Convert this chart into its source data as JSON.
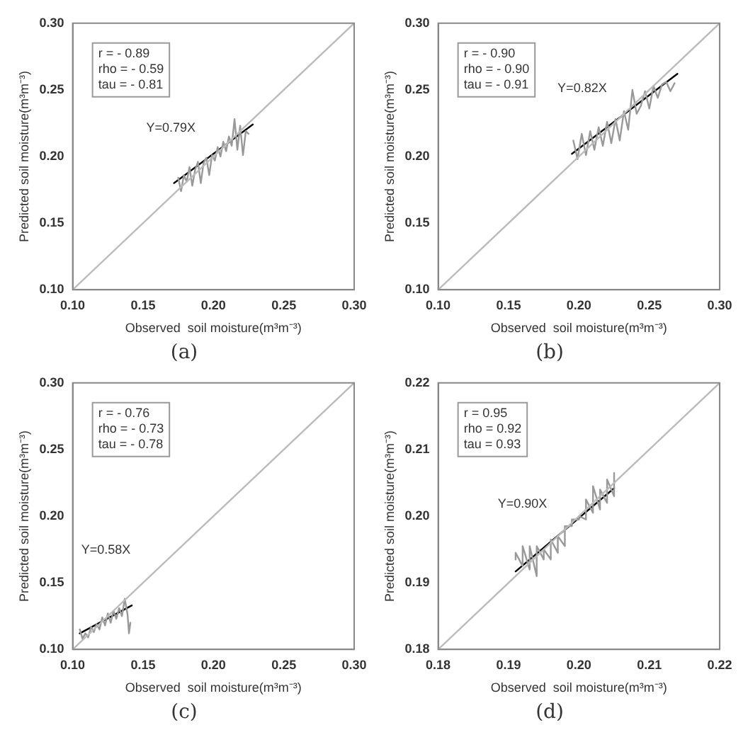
{
  "chart_data": [
    {
      "type": "line",
      "title": "(a)",
      "xlabel": "Observed  soil moisture(m³m⁻³)",
      "ylabel": "Predicted soil moisture(m³m⁻³)",
      "xlim": [
        0.1,
        0.3
      ],
      "ylim": [
        0.1,
        0.3
      ],
      "xticks": [
        {
          "value": 0.1,
          "label": "0.10"
        },
        {
          "value": 0.15,
          "label": "0.15"
        },
        {
          "value": 0.2,
          "label": "0.20"
        },
        {
          "value": 0.25,
          "label": "0.25"
        },
        {
          "value": 0.3,
          "label": "0.30"
        }
      ],
      "yticks": [
        {
          "value": 0.1,
          "label": "0.10"
        },
        {
          "value": 0.15,
          "label": "0.15"
        },
        {
          "value": 0.2,
          "label": "0.20"
        },
        {
          "value": 0.25,
          "label": "0.25"
        },
        {
          "value": 0.3,
          "label": "0.30"
        }
      ],
      "grid": false,
      "legend": false,
      "marker": "none",
      "line_style": "solid",
      "annotations": [
        "r = - 0.89",
        "rho = - 0.59",
        "tau = - 0.81"
      ],
      "series": [
        {
          "color": "#bbbbbb",
          "x": [
            0.1,
            0.3
          ],
          "values": [
            0.1,
            0.3
          ]
        },
        {
          "color": "#999999",
          "x": [
            0.175,
            0.177,
            0.179,
            0.181,
            0.183,
            0.185,
            0.187,
            0.189,
            0.191,
            0.193,
            0.195,
            0.197,
            0.199,
            0.201,
            0.203,
            0.205,
            0.207,
            0.209,
            0.211,
            0.213,
            0.215,
            0.217,
            0.219,
            0.221,
            0.223,
            0.225
          ],
          "values": [
            0.184,
            0.174,
            0.186,
            0.181,
            0.192,
            0.178,
            0.19,
            0.196,
            0.18,
            0.195,
            0.199,
            0.186,
            0.201,
            0.197,
            0.207,
            0.2,
            0.211,
            0.204,
            0.215,
            0.208,
            0.228,
            0.205,
            0.223,
            0.201,
            0.219,
            0.217
          ]
        },
        {
          "name": "Y=0.79X",
          "color": "#000000",
          "x": [
            0.172,
            0.228
          ],
          "values": [
            0.18,
            0.224
          ]
        }
      ]
    },
    {
      "type": "line",
      "title": "(b)",
      "xlabel": "Observed  soil moisture(m³m⁻³)",
      "ylabel": "Predicted soil moisture(m³m⁻³)",
      "xlim": [
        0.1,
        0.3
      ],
      "ylim": [
        0.1,
        0.3
      ],
      "xticks": [
        {
          "value": 0.1,
          "label": "0.10"
        },
        {
          "value": 0.15,
          "label": "0.15"
        },
        {
          "value": 0.2,
          "label": "0.20"
        },
        {
          "value": 0.25,
          "label": "0.25"
        },
        {
          "value": 0.3,
          "label": "0.30"
        }
      ],
      "yticks": [
        {
          "value": 0.1,
          "label": "0.10"
        },
        {
          "value": 0.15,
          "label": "0.15"
        },
        {
          "value": 0.2,
          "label": "0.20"
        },
        {
          "value": 0.25,
          "label": "0.25"
        },
        {
          "value": 0.3,
          "label": "0.30"
        }
      ],
      "grid": false,
      "legend": false,
      "marker": "none",
      "line_style": "solid",
      "annotations": [
        "r = - 0.90",
        "rho = - 0.90",
        "tau = - 0.91"
      ],
      "series": [
        {
          "color": "#bbbbbb",
          "x": [
            0.1,
            0.3
          ],
          "values": [
            0.1,
            0.3
          ]
        },
        {
          "color": "#999999",
          "x": [
            0.196,
            0.199,
            0.202,
            0.205,
            0.208,
            0.211,
            0.214,
            0.217,
            0.22,
            0.223,
            0.226,
            0.229,
            0.232,
            0.235,
            0.238,
            0.241,
            0.244,
            0.247,
            0.25,
            0.253,
            0.256,
            0.259,
            0.262,
            0.265,
            0.268
          ],
          "values": [
            0.212,
            0.198,
            0.217,
            0.201,
            0.219,
            0.205,
            0.222,
            0.208,
            0.226,
            0.21,
            0.228,
            0.212,
            0.234,
            0.22,
            0.25,
            0.232,
            0.238,
            0.249,
            0.236,
            0.253,
            0.244,
            0.254,
            0.256,
            0.249,
            0.255
          ]
        },
        {
          "name": "Y=0.82X",
          "color": "#000000",
          "x": [
            0.195,
            0.27
          ],
          "values": [
            0.202,
            0.262
          ]
        }
      ]
    },
    {
      "type": "line",
      "title": "(c)",
      "xlabel": "Observed  soil moisture(m³m⁻³)",
      "ylabel": "Predicted soil moisture(m³m⁻³)",
      "xlim": [
        0.1,
        0.3
      ],
      "ylim": [
        0.1,
        0.3
      ],
      "xticks": [
        {
          "value": 0.1,
          "label": "0.10"
        },
        {
          "value": 0.15,
          "label": "0.15"
        },
        {
          "value": 0.2,
          "label": "0.20"
        },
        {
          "value": 0.25,
          "label": "0.25"
        },
        {
          "value": 0.3,
          "label": "0.30"
        }
      ],
      "yticks": [
        {
          "value": 0.1,
          "label": "0.10"
        },
        {
          "value": 0.15,
          "label": "0.15"
        },
        {
          "value": 0.2,
          "label": "0.20"
        },
        {
          "value": 0.25,
          "label": "0.25"
        },
        {
          "value": 0.3,
          "label": "0.30"
        }
      ],
      "grid": false,
      "legend": false,
      "marker": "none",
      "line_style": "solid",
      "annotations": [
        "r = - 0.76",
        "rho = - 0.73",
        "tau = - 0.78"
      ],
      "series": [
        {
          "color": "#bbbbbb",
          "x": [
            0.1,
            0.3
          ],
          "values": [
            0.1,
            0.3
          ]
        },
        {
          "color": "#999999",
          "x": [
            0.105,
            0.107,
            0.109,
            0.111,
            0.113,
            0.115,
            0.117,
            0.119,
            0.121,
            0.123,
            0.125,
            0.127,
            0.129,
            0.131,
            0.133,
            0.135,
            0.137,
            0.139,
            0.14,
            0.141
          ],
          "values": [
            0.115,
            0.108,
            0.112,
            0.109,
            0.117,
            0.113,
            0.119,
            0.115,
            0.124,
            0.118,
            0.127,
            0.12,
            0.129,
            0.123,
            0.131,
            0.125,
            0.138,
            0.126,
            0.112,
            0.12
          ]
        },
        {
          "name": "Y=0.58X",
          "color": "#000000",
          "x": [
            0.105,
            0.142
          ],
          "values": [
            0.112,
            0.133
          ]
        }
      ]
    },
    {
      "type": "line",
      "title": "(d)",
      "xlabel": "Observed  soil moisture(m³m⁻³)",
      "ylabel": "Predicted soil moisture(m³m⁻³)",
      "xlim": [
        0.18,
        0.22
      ],
      "ylim": [
        0.18,
        0.22
      ],
      "xticks": [
        0.18,
        0.19,
        {
          "value": 0.2,
          "label": "0.20"
        },
        0.21,
        0.22
      ],
      "yticks": [
        0.18,
        0.19,
        {
          "value": 0.2,
          "label": "0.20"
        },
        0.21,
        0.22
      ],
      "grid": false,
      "legend": false,
      "marker": "none",
      "line_style": "solid",
      "annotations": [
        "r = 0.95",
        "rho = 0.92",
        "tau = 0.93"
      ],
      "series": [
        {
          "color": "#bbbbbb",
          "x": [
            0.18,
            0.22
          ],
          "values": [
            0.18,
            0.22
          ]
        },
        {
          "color": "#999999",
          "x": [
            0.191,
            0.191,
            0.192,
            0.192,
            0.193,
            0.193,
            0.194,
            0.194,
            0.195,
            0.195,
            0.196,
            0.196,
            0.197,
            0.197,
            0.198,
            0.198,
            0.199,
            0.199,
            0.2,
            0.2,
            0.201,
            0.201,
            0.202,
            0.202,
            0.203,
            0.203,
            0.204,
            0.204,
            0.205,
            0.205
          ],
          "values": [
            0.1935,
            0.1945,
            0.1925,
            0.1955,
            0.192,
            0.1955,
            0.191,
            0.1955,
            0.1935,
            0.195,
            0.1935,
            0.1965,
            0.1945,
            0.197,
            0.1955,
            0.1985,
            0.1985,
            0.1995,
            0.1995,
            0.2,
            0.1995,
            0.2025,
            0.2005,
            0.2045,
            0.201,
            0.204,
            0.202,
            0.2055,
            0.203,
            0.2065
          ]
        },
        {
          "name": "Y=0.90X",
          "color": "#000000",
          "x": [
            0.191,
            0.205
          ],
          "values": [
            0.1917,
            0.2042
          ]
        }
      ]
    }
  ]
}
